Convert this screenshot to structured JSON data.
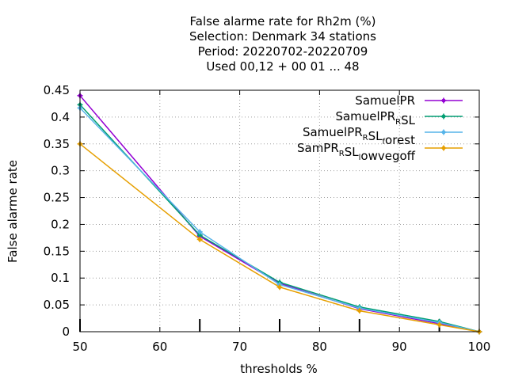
{
  "chart_data": {
    "type": "line",
    "title_lines": [
      "False alarme rate  for Rh2m (%)",
      "Selection: Denmark     34 stations",
      "Period: 20220702-20220709",
      "Used  00,12  + 00 01 ... 48"
    ],
    "xlabel": "thresholds %",
    "ylabel": "False alarme rate",
    "xlim": [
      50,
      100
    ],
    "ylim": [
      0,
      0.45
    ],
    "x_ticks": [
      "50",
      "60",
      "70",
      "80",
      "90",
      "100"
    ],
    "y_ticks": [
      "0",
      "0.05",
      "0.1",
      "0.15",
      "0.2",
      "0.25",
      "0.3",
      "0.35",
      "0.4",
      "0.45"
    ],
    "grid": true,
    "legend_position": "top-right",
    "x": [
      50,
      65,
      75,
      85,
      95,
      100
    ],
    "series": [
      {
        "name": "SamuelPR",
        "color": "#9400d3",
        "values": [
          0.44,
          0.178,
          0.09,
          0.043,
          0.015,
          0.0
        ]
      },
      {
        "name": "SamuelPR_RSL",
        "color": "#009e73",
        "values": [
          0.423,
          0.18,
          0.092,
          0.046,
          0.019,
          0.0
        ]
      },
      {
        "name": "SamuelPR_RSL_forest",
        "color": "#56b4e9",
        "values": [
          0.417,
          0.186,
          0.088,
          0.044,
          0.017,
          0.0
        ]
      },
      {
        "name": "SamPR_RSL_lowvegoff",
        "color": "#e69f00",
        "values": [
          0.35,
          0.172,
          0.083,
          0.039,
          0.013,
          0.0
        ]
      }
    ],
    "legend": [
      {
        "base": "SamuelPR",
        "sub": "",
        "rest": ""
      },
      {
        "base": "SamuelPR",
        "sub": "R",
        "rest": "SL"
      },
      {
        "base": "SamuelPR",
        "sub": "R",
        "rest": "SL",
        "sub2": "f",
        "rest2": "orest"
      },
      {
        "base": "SamPR",
        "sub": "R",
        "rest": "SL",
        "sub2": "l",
        "rest2": "owvegoff"
      }
    ],
    "threshold_marks": [
      65,
      75,
      85,
      95
    ]
  }
}
